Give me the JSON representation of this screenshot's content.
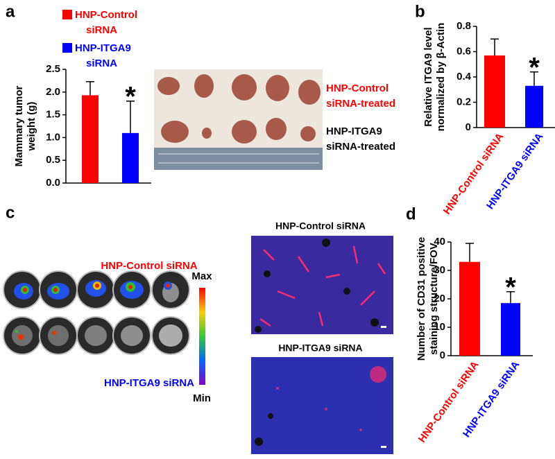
{
  "chart_data": [
    {
      "type": "bar",
      "panel": "a",
      "ylabel": [
        "Mammary tumor",
        "weight (g)"
      ],
      "categories": [
        null,
        null
      ],
      "legend": [
        [
          "HNP-Control",
          "siRNA"
        ],
        [
          "HNP-ITGA9",
          "siRNA"
        ]
      ],
      "values": [
        1.93,
        1.1
      ],
      "errors": [
        0.3,
        0.7
      ],
      "colors": [
        "#ff0000",
        "#0000ff"
      ],
      "significance": [
        null,
        "*"
      ],
      "ylim": [
        0,
        2.5
      ],
      "yticks": [
        {
          "value": 0,
          "label": "0.0"
        },
        {
          "value": 0.5,
          "label": "0.5"
        },
        {
          "value": 1,
          "label": "1.0"
        },
        {
          "value": 1.5,
          "label": "1.5"
        },
        {
          "value": 2,
          "label": "2.0"
        },
        {
          "value": 2.5,
          "label": "2.5"
        }
      ]
    },
    {
      "type": "bar",
      "panel": "b",
      "ylabel": [
        "Relative ITGA9 level",
        "normalized by β-Actin"
      ],
      "categories": [
        "HNP-Control siRNA",
        "HNP-ITGA9 siRNA"
      ],
      "values": [
        0.57,
        0.33
      ],
      "errors": [
        0.13,
        0.11
      ],
      "colors": [
        "#ff0000",
        "#0000ff"
      ],
      "significance": [
        null,
        "*"
      ],
      "ylim": [
        0,
        0.8
      ],
      "yticks": [
        0,
        0.2,
        0.4,
        0.6,
        0.8
      ]
    },
    {
      "type": "bar",
      "panel": "d",
      "ylabel": [
        "Number of CD31 positive",
        "staining structure/FOV"
      ],
      "categories": [
        "HNP-Control siRNA",
        "HNP-ITGA9 siRNA"
      ],
      "values": [
        33,
        18.5
      ],
      "errors": [
        6.5,
        4
      ],
      "colors": [
        "#ff0000",
        "#0000ff"
      ],
      "significance": [
        null,
        "*"
      ],
      "ylim": [
        0,
        40
      ],
      "yticks": [
        0,
        10,
        20,
        30,
        40
      ]
    }
  ],
  "figure": {
    "panel_c_label": "c",
    "photo_labels": [
      [
        "HNP-Control",
        "siRNA-treated"
      ],
      [
        "HNP-ITGA9",
        "siRNA-treated"
      ]
    ],
    "imaging": {
      "top": "HNP-Control siRNA",
      "bottom": "HNP-ITGA9 siRNA",
      "max": "Max",
      "min": "Min"
    },
    "microscopy_titles": [
      "HNP-Control siRNA",
      "HNP-ITGA9 siRNA"
    ]
  }
}
